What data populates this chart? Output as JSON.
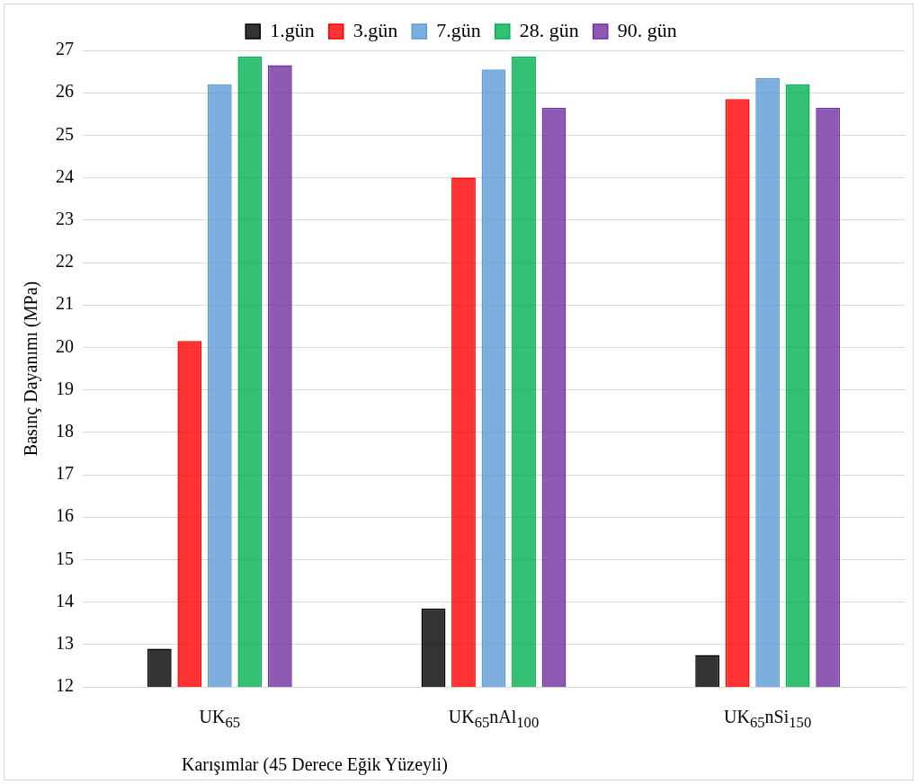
{
  "chart_data": {
    "type": "bar",
    "xlabel": "Karışımlar (45 Derece Eğik Yüzeyli)",
    "ylabel": "Basınç Dayanımı (MPa)",
    "categories": [
      "UK$_{65}$",
      "UK$_{65}$nAl$_{100}$",
      "UK$_{65}$nSi$_{150}$"
    ],
    "series": [
      {
        "name": "1.gün",
        "color": "#000000",
        "values": [
          12.9,
          13.85,
          12.75
        ]
      },
      {
        "name": "3.gün",
        "color": "#ff0000",
        "values": [
          20.15,
          24.0,
          25.85
        ]
      },
      {
        "name": "7.gün",
        "color": "#5b9bd5",
        "values": [
          26.2,
          26.55,
          26.35
        ]
      },
      {
        "name": "28. gün",
        "color": "#00b050",
        "values": [
          26.85,
          26.85,
          26.2
        ]
      },
      {
        "name": "90. gün",
        "color": "#7030a0",
        "values": [
          26.65,
          25.65,
          25.65
        ]
      }
    ],
    "ylim": [
      12,
      27
    ],
    "yticks": [
      12,
      13,
      14,
      15,
      16,
      17,
      18,
      19,
      20,
      21,
      22,
      23,
      24,
      25,
      26,
      27
    ],
    "grid": "y",
    "legend": "top"
  }
}
